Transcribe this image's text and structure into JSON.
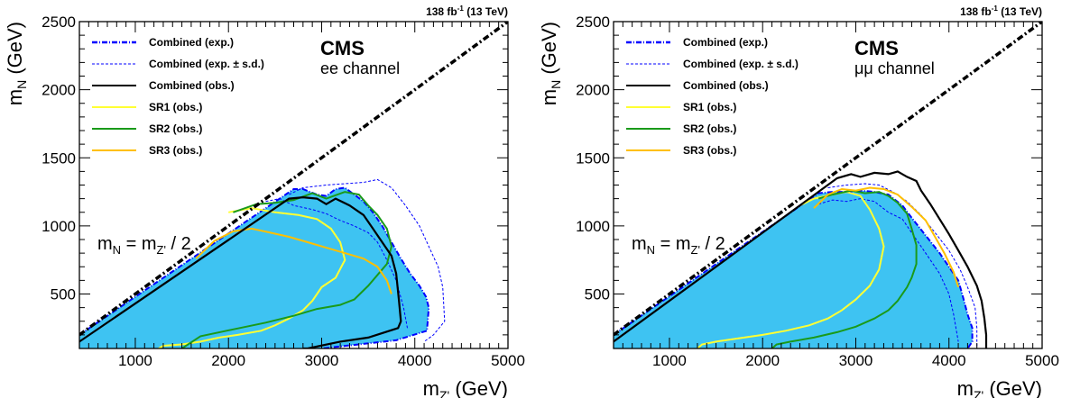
{
  "chart_data": [
    {
      "type": "line",
      "lumi": {
        "base": "138 fb",
        "sup": "-1",
        "rest": " (13 TeV)"
      },
      "experiment": "CMS",
      "channel": "ee channel",
      "xlabel": {
        "base": "m",
        "sub": "Z'",
        "unit": " (GeV)"
      },
      "ylabel": {
        "base": "m",
        "sub": "N",
        "unit": " (GeV)"
      },
      "xlim": [
        400,
        5000
      ],
      "ylim": [
        100,
        2500
      ],
      "xticks": [
        "1000",
        "2000",
        "3000",
        "4000",
        "5000"
      ],
      "yticks": [
        "500",
        "1000",
        "1500",
        "2000",
        "2500"
      ],
      "diagonal_label": {
        "base": "m",
        "sub1": "N",
        "mid": " = m",
        "sub2": "Z'",
        "end": " / 2"
      },
      "legend": [
        {
          "label": "Combined (exp.)",
          "style": "exp",
          "color": "#0000ff"
        },
        {
          "label": "Combined (exp. ± s.d.)",
          "style": "band",
          "color": "#0000ff"
        },
        {
          "label": "Combined (obs.)",
          "style": "obs",
          "color": "#000000"
        },
        {
          "label": "SR1 (obs.)",
          "style": "sr",
          "color": "#ffff33"
        },
        {
          "label": "SR2 (obs.)",
          "style": "sr",
          "color": "#1a9a1a"
        },
        {
          "label": "SR3 (obs.)",
          "style": "sr",
          "color": "#ffbf00"
        }
      ],
      "fill_color": "#3ec3f2",
      "series": [
        {
          "role": "exp",
          "color": "#0000ff",
          "x": [
            400,
            2700,
            2800,
            2950,
            3050,
            3150,
            3250,
            3350,
            3450,
            3550,
            3650,
            3750,
            3850,
            3950,
            4050,
            4120,
            4150,
            4130,
            3800,
            3000
          ],
          "y": [
            200,
            1270,
            1270,
            1230,
            1220,
            1270,
            1280,
            1230,
            1180,
            1100,
            1000,
            880,
            760,
            650,
            560,
            480,
            400,
            230,
            160,
            100
          ]
        },
        {
          "role": "exp_plus",
          "color": "#0000ff",
          "x": [
            2650,
            2800,
            3050,
            3250,
            3450,
            3600,
            3750,
            3900,
            4050,
            4150,
            4250,
            4300,
            4320,
            4200,
            4100
          ],
          "y": [
            1230,
            1280,
            1300,
            1310,
            1320,
            1340,
            1280,
            1150,
            1000,
            850,
            700,
            550,
            300,
            200,
            150
          ]
        },
        {
          "role": "exp_minus",
          "color": "#0000ff",
          "x": [
            2400,
            2550,
            2700,
            2900,
            3050,
            3200,
            3350,
            3500,
            3600,
            3700,
            3800,
            3880,
            3920
          ],
          "y": [
            1180,
            1200,
            1150,
            1120,
            1090,
            1040,
            1000,
            950,
            880,
            750,
            600,
            400,
            250
          ]
        },
        {
          "role": "obs",
          "color": "#000000",
          "x": [
            400,
            2650,
            2800,
            2950,
            3050,
            3150,
            3300,
            3450,
            3550,
            3650,
            3750,
            3800,
            3830,
            3850,
            3820,
            3500,
            3200,
            2850,
            2800
          ],
          "y": [
            150,
            1200,
            1210,
            1200,
            1160,
            1200,
            1150,
            1080,
            980,
            880,
            780,
            650,
            450,
            300,
            250,
            180,
            150,
            100,
            100
          ]
        },
        {
          "role": "sr1",
          "color": "#ffff33",
          "x": [
            2000,
            2250,
            2500,
            2750,
            2950,
            3100,
            3200,
            3250,
            3150,
            3000,
            2900,
            2800,
            2650,
            2500,
            2350,
            2100,
            1900,
            1700,
            1500,
            1300,
            1250
          ],
          "y": [
            1100,
            1130,
            1100,
            1080,
            1050,
            980,
            880,
            750,
            620,
            550,
            450,
            380,
            320,
            270,
            230,
            200,
            180,
            150,
            130,
            120,
            100
          ]
        },
        {
          "role": "sr2",
          "color": "#1a9a1a",
          "x": [
            2050,
            2300,
            2500,
            2700,
            2900,
            3050,
            3250,
            3400,
            3500,
            3600,
            3700,
            3750,
            3700,
            3600,
            3500,
            3350,
            3200,
            2950,
            2700,
            2400,
            2050,
            1700,
            1500
          ],
          "y": [
            1100,
            1160,
            1170,
            1190,
            1240,
            1200,
            1250,
            1230,
            1150,
            1080,
            980,
            850,
            720,
            640,
            560,
            460,
            420,
            390,
            340,
            290,
            240,
            190,
            100
          ]
        },
        {
          "role": "sr3",
          "color": "#ffbf00",
          "x": [
            1650,
            1850,
            2050,
            2250,
            2450,
            2650,
            2850,
            3050,
            3250,
            3450,
            3600,
            3700,
            3750
          ],
          "y": [
            760,
            890,
            960,
            980,
            950,
            920,
            880,
            840,
            800,
            760,
            700,
            600,
            500
          ]
        }
      ]
    },
    {
      "type": "line",
      "lumi": {
        "base": "138 fb",
        "sup": "-1",
        "rest": " (13 TeV)"
      },
      "experiment": "CMS",
      "channel": "μμ channel",
      "xlabel": {
        "base": "m",
        "sub": "Z'",
        "unit": " (GeV)"
      },
      "ylabel": {
        "base": "m",
        "sub": "N",
        "unit": " (GeV)"
      },
      "xlim": [
        400,
        5000
      ],
      "ylim": [
        100,
        2500
      ],
      "xticks": [
        "1000",
        "2000",
        "3000",
        "4000",
        "5000"
      ],
      "yticks": [
        "500",
        "1000",
        "1500",
        "2000",
        "2500"
      ],
      "diagonal_label": {
        "base": "m",
        "sub1": "N",
        "mid": " = m",
        "sub2": "Z'",
        "end": " / 2"
      },
      "legend": [
        {
          "label": "Combined (exp.)",
          "style": "exp",
          "color": "#0000ff"
        },
        {
          "label": "Combined (exp. ± s.d.)",
          "style": "band",
          "color": "#0000ff"
        },
        {
          "label": "Combined (obs.)",
          "style": "obs",
          "color": "#000000"
        },
        {
          "label": "SR1 (obs.)",
          "style": "sr",
          "color": "#ffff33"
        },
        {
          "label": "SR2 (obs.)",
          "style": "sr",
          "color": "#1a9a1a"
        },
        {
          "label": "SR3 (obs.)",
          "style": "sr",
          "color": "#ffbf00"
        }
      ],
      "fill_color": "#3ec3f2",
      "series": [
        {
          "role": "exp",
          "color": "#0000ff",
          "x": [
            400,
            2600,
            2750,
            2900,
            3050,
            3200,
            3350,
            3500,
            3600,
            3750,
            3900,
            4000,
            4100,
            4150,
            4200,
            4250,
            4250,
            4200
          ],
          "y": [
            200,
            1240,
            1250,
            1250,
            1260,
            1250,
            1230,
            1150,
            1060,
            930,
            800,
            700,
            600,
            480,
            350,
            250,
            150,
            100
          ]
        },
        {
          "role": "exp_plus",
          "color": "#0000ff",
          "x": [
            2700,
            2900,
            3100,
            3250,
            3400,
            3550,
            3700,
            3850,
            4000,
            4120,
            4200,
            4280,
            4300,
            4300
          ],
          "y": [
            1280,
            1300,
            1310,
            1300,
            1250,
            1180,
            1080,
            950,
            820,
            680,
            550,
            400,
            250,
            100
          ]
        },
        {
          "role": "exp_minus",
          "color": "#0000ff",
          "x": [
            2600,
            2750,
            2900,
            3050,
            3200,
            3350,
            3500,
            3600,
            3700,
            3800,
            3900,
            4000,
            4050,
            4100
          ],
          "y": [
            1160,
            1190,
            1180,
            1200,
            1180,
            1100,
            1050,
            950,
            850,
            750,
            650,
            500,
            350,
            150
          ]
        },
        {
          "role": "obs",
          "color": "#000000",
          "x": [
            400,
            2800,
            2950,
            3050,
            3200,
            3350,
            3450,
            3550,
            3650,
            3700,
            3800,
            3900,
            4000,
            4100,
            4200,
            4300,
            4350,
            4380,
            4400,
            4400
          ],
          "y": [
            150,
            1350,
            1380,
            1360,
            1390,
            1380,
            1400,
            1360,
            1330,
            1260,
            1160,
            1050,
            940,
            820,
            700,
            560,
            450,
            320,
            200,
            100
          ]
        },
        {
          "role": "sr1",
          "color": "#ffff33",
          "x": [
            2400,
            2550,
            2750,
            2900,
            3050,
            3150,
            3250,
            3300,
            3250,
            3150,
            3000,
            2850,
            2700,
            2500,
            2250,
            2000,
            1700,
            1500,
            1350,
            1300
          ],
          "y": [
            1150,
            1200,
            1230,
            1250,
            1220,
            1120,
            980,
            850,
            680,
            560,
            460,
            380,
            320,
            270,
            230,
            200,
            170,
            150,
            130,
            100
          ]
        },
        {
          "role": "sr2",
          "color": "#1a9a1a",
          "x": [
            2600,
            2750,
            2950,
            3100,
            3250,
            3350,
            3450,
            3550,
            3600,
            3650,
            3650,
            3600,
            3550,
            3450,
            3350,
            3200,
            3000,
            2800,
            2550,
            2300,
            2150,
            2100
          ],
          "y": [
            1200,
            1230,
            1260,
            1240,
            1250,
            1220,
            1170,
            1090,
            980,
            860,
            720,
            620,
            550,
            450,
            380,
            320,
            260,
            220,
            180,
            150,
            130,
            100
          ]
        },
        {
          "role": "sr3",
          "color": "#ffbf00",
          "x": [
            2550,
            2700,
            2850,
            3000,
            3150,
            3300,
            3450,
            3600,
            3750,
            3850,
            3950,
            4050,
            4100
          ],
          "y": [
            1130,
            1230,
            1270,
            1260,
            1280,
            1270,
            1230,
            1140,
            1040,
            920,
            800,
            660,
            550
          ]
        }
      ]
    }
  ]
}
